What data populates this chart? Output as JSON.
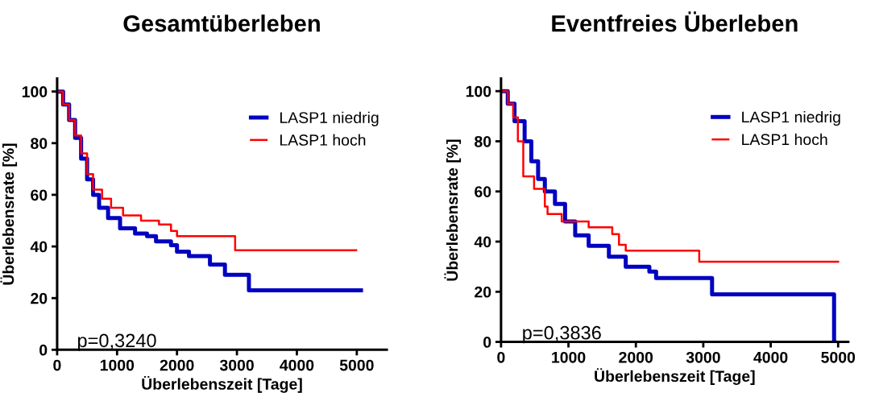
{
  "chart_data": [
    {
      "type": "step",
      "title": "Gesamtüberleben",
      "xlabel": "Überlebenszeit [Tage]",
      "ylabel": "Überlebensrate [%]",
      "xlim": [
        0,
        5500
      ],
      "xticks": [
        0,
        1000,
        2000,
        3000,
        4000,
        5000
      ],
      "ylim": [
        0,
        105
      ],
      "yticks": [
        0,
        20,
        40,
        60,
        80,
        100
      ],
      "grid": false,
      "legend": "top right",
      "annotations": [
        "p=0,3240"
      ],
      "series": [
        {
          "name": "LASP1 niedrig",
          "color": "#0000c0",
          "x": [
            0,
            100,
            200,
            300,
            400,
            500,
            600,
            700,
            850,
            1050,
            1300,
            1500,
            1650,
            1900,
            2000,
            2200,
            2550,
            2800,
            3200,
            5070
          ],
          "values": [
            100,
            95,
            89,
            82,
            74,
            66,
            60,
            55,
            51,
            47,
            45,
            44,
            42,
            40.5,
            38,
            36.3,
            33,
            29,
            23,
            23
          ]
        },
        {
          "name": "LASP1 hoch",
          "color": "#ff0000",
          "x": [
            0,
            100,
            200,
            300,
            400,
            500,
            600,
            750,
            900,
            1100,
            1400,
            1700,
            1900,
            2000,
            2970,
            4990
          ],
          "values": [
            100,
            95,
            89,
            83,
            76,
            68,
            62,
            58.5,
            55,
            52,
            50,
            48.5,
            46,
            44,
            38.5,
            38.5
          ]
        }
      ]
    },
    {
      "type": "step",
      "title": "Eventfreies Überleben",
      "xlabel": "Überlebenszeit [Tage]",
      "ylabel": "Überlebensrate [%]",
      "xlim": [
        0,
        5150
      ],
      "xticks": [
        0,
        1000,
        2000,
        3000,
        4000,
        5000
      ],
      "ylim": [
        0,
        105
      ],
      "yticks": [
        0,
        20,
        40,
        60,
        80,
        100
      ],
      "grid": false,
      "legend": "top right",
      "annotations": [
        "p=0,3836"
      ],
      "series": [
        {
          "name": "LASP1 niedrig",
          "color": "#0000c0",
          "x": [
            0,
            100,
            200,
            350,
            450,
            550,
            650,
            800,
            950,
            1100,
            1300,
            1600,
            1850,
            2200,
            2300,
            3130,
            4940,
            4945
          ],
          "values": [
            100,
            95,
            88,
            80,
            72,
            65,
            60,
            55,
            48,
            42.5,
            38.3,
            34,
            30,
            28,
            25.5,
            19,
            0,
            0
          ]
        },
        {
          "name": "LASP1 hoch",
          "color": "#ff0000",
          "x": [
            0,
            100,
            180,
            250,
            330,
            490,
            650,
            690,
            900,
            1300,
            1650,
            1750,
            1850,
            2940,
            5000
          ],
          "values": [
            100,
            95,
            89.5,
            80,
            66,
            61,
            54,
            51,
            48,
            45.7,
            43,
            38.7,
            36.4,
            32,
            32
          ]
        }
      ]
    }
  ]
}
